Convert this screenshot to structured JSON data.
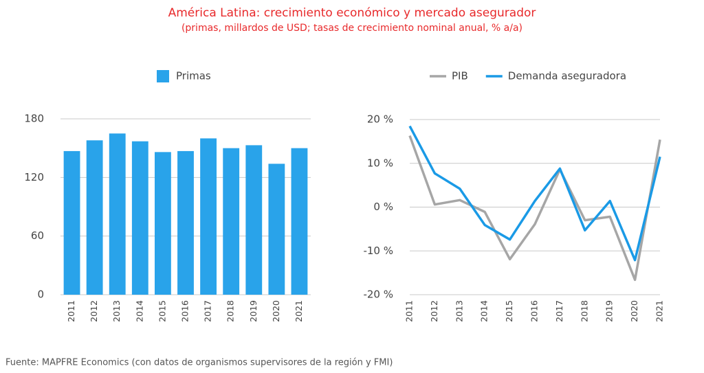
{
  "title": "América Latina: crecimiento económico y mercado asegurador",
  "subtitle": "(primas, millardos de USD; tasas de crecimiento nominal anual, % a/a)",
  "source": "Fuente: MAPFRE Economics (con datos de organismos supervisores de la región y FMI)",
  "chart_data": [
    {
      "type": "bar",
      "categories": [
        "2011",
        "2012",
        "2013",
        "2014",
        "2015",
        "2016",
        "2017",
        "2018",
        "2019",
        "2020",
        "2021"
      ],
      "series": [
        {
          "name": "Primas",
          "color": "#29a3ea",
          "values": [
            147,
            158,
            165,
            157,
            146,
            147,
            160,
            150,
            153,
            134,
            150
          ]
        }
      ],
      "ylim": [
        0,
        180
      ],
      "yticks": [
        0,
        60,
        120,
        180
      ],
      "grid": true
    },
    {
      "type": "line",
      "categories": [
        "2011",
        "2012",
        "2013",
        "2014",
        "2015",
        "2016",
        "2017",
        "2018",
        "2019",
        "2020",
        "2021"
      ],
      "series": [
        {
          "name": "PIB",
          "color": "#a6a6a6",
          "values": [
            16.3,
            0.6,
            1.6,
            -1.1,
            -11.9,
            -3.9,
            8.6,
            -3.0,
            -2.2,
            -16.6,
            15.4
          ]
        },
        {
          "name": "Demanda aseguradora",
          "color": "#1a9ae6",
          "values": [
            18.5,
            7.7,
            4.2,
            -4.1,
            -7.4,
            1.4,
            8.8,
            -5.3,
            1.4,
            -12.1,
            11.5
          ]
        }
      ],
      "ylim": [
        -20,
        20
      ],
      "yticks": [
        {
          "value": -20,
          "label": "-20 %"
        },
        {
          "value": -10,
          "label": "-10 %"
        },
        {
          "value": 0,
          "label": "0 %"
        },
        {
          "value": 10,
          "label": "10 %"
        },
        {
          "value": 20,
          "label": "20 %"
        }
      ],
      "grid": true
    }
  ]
}
